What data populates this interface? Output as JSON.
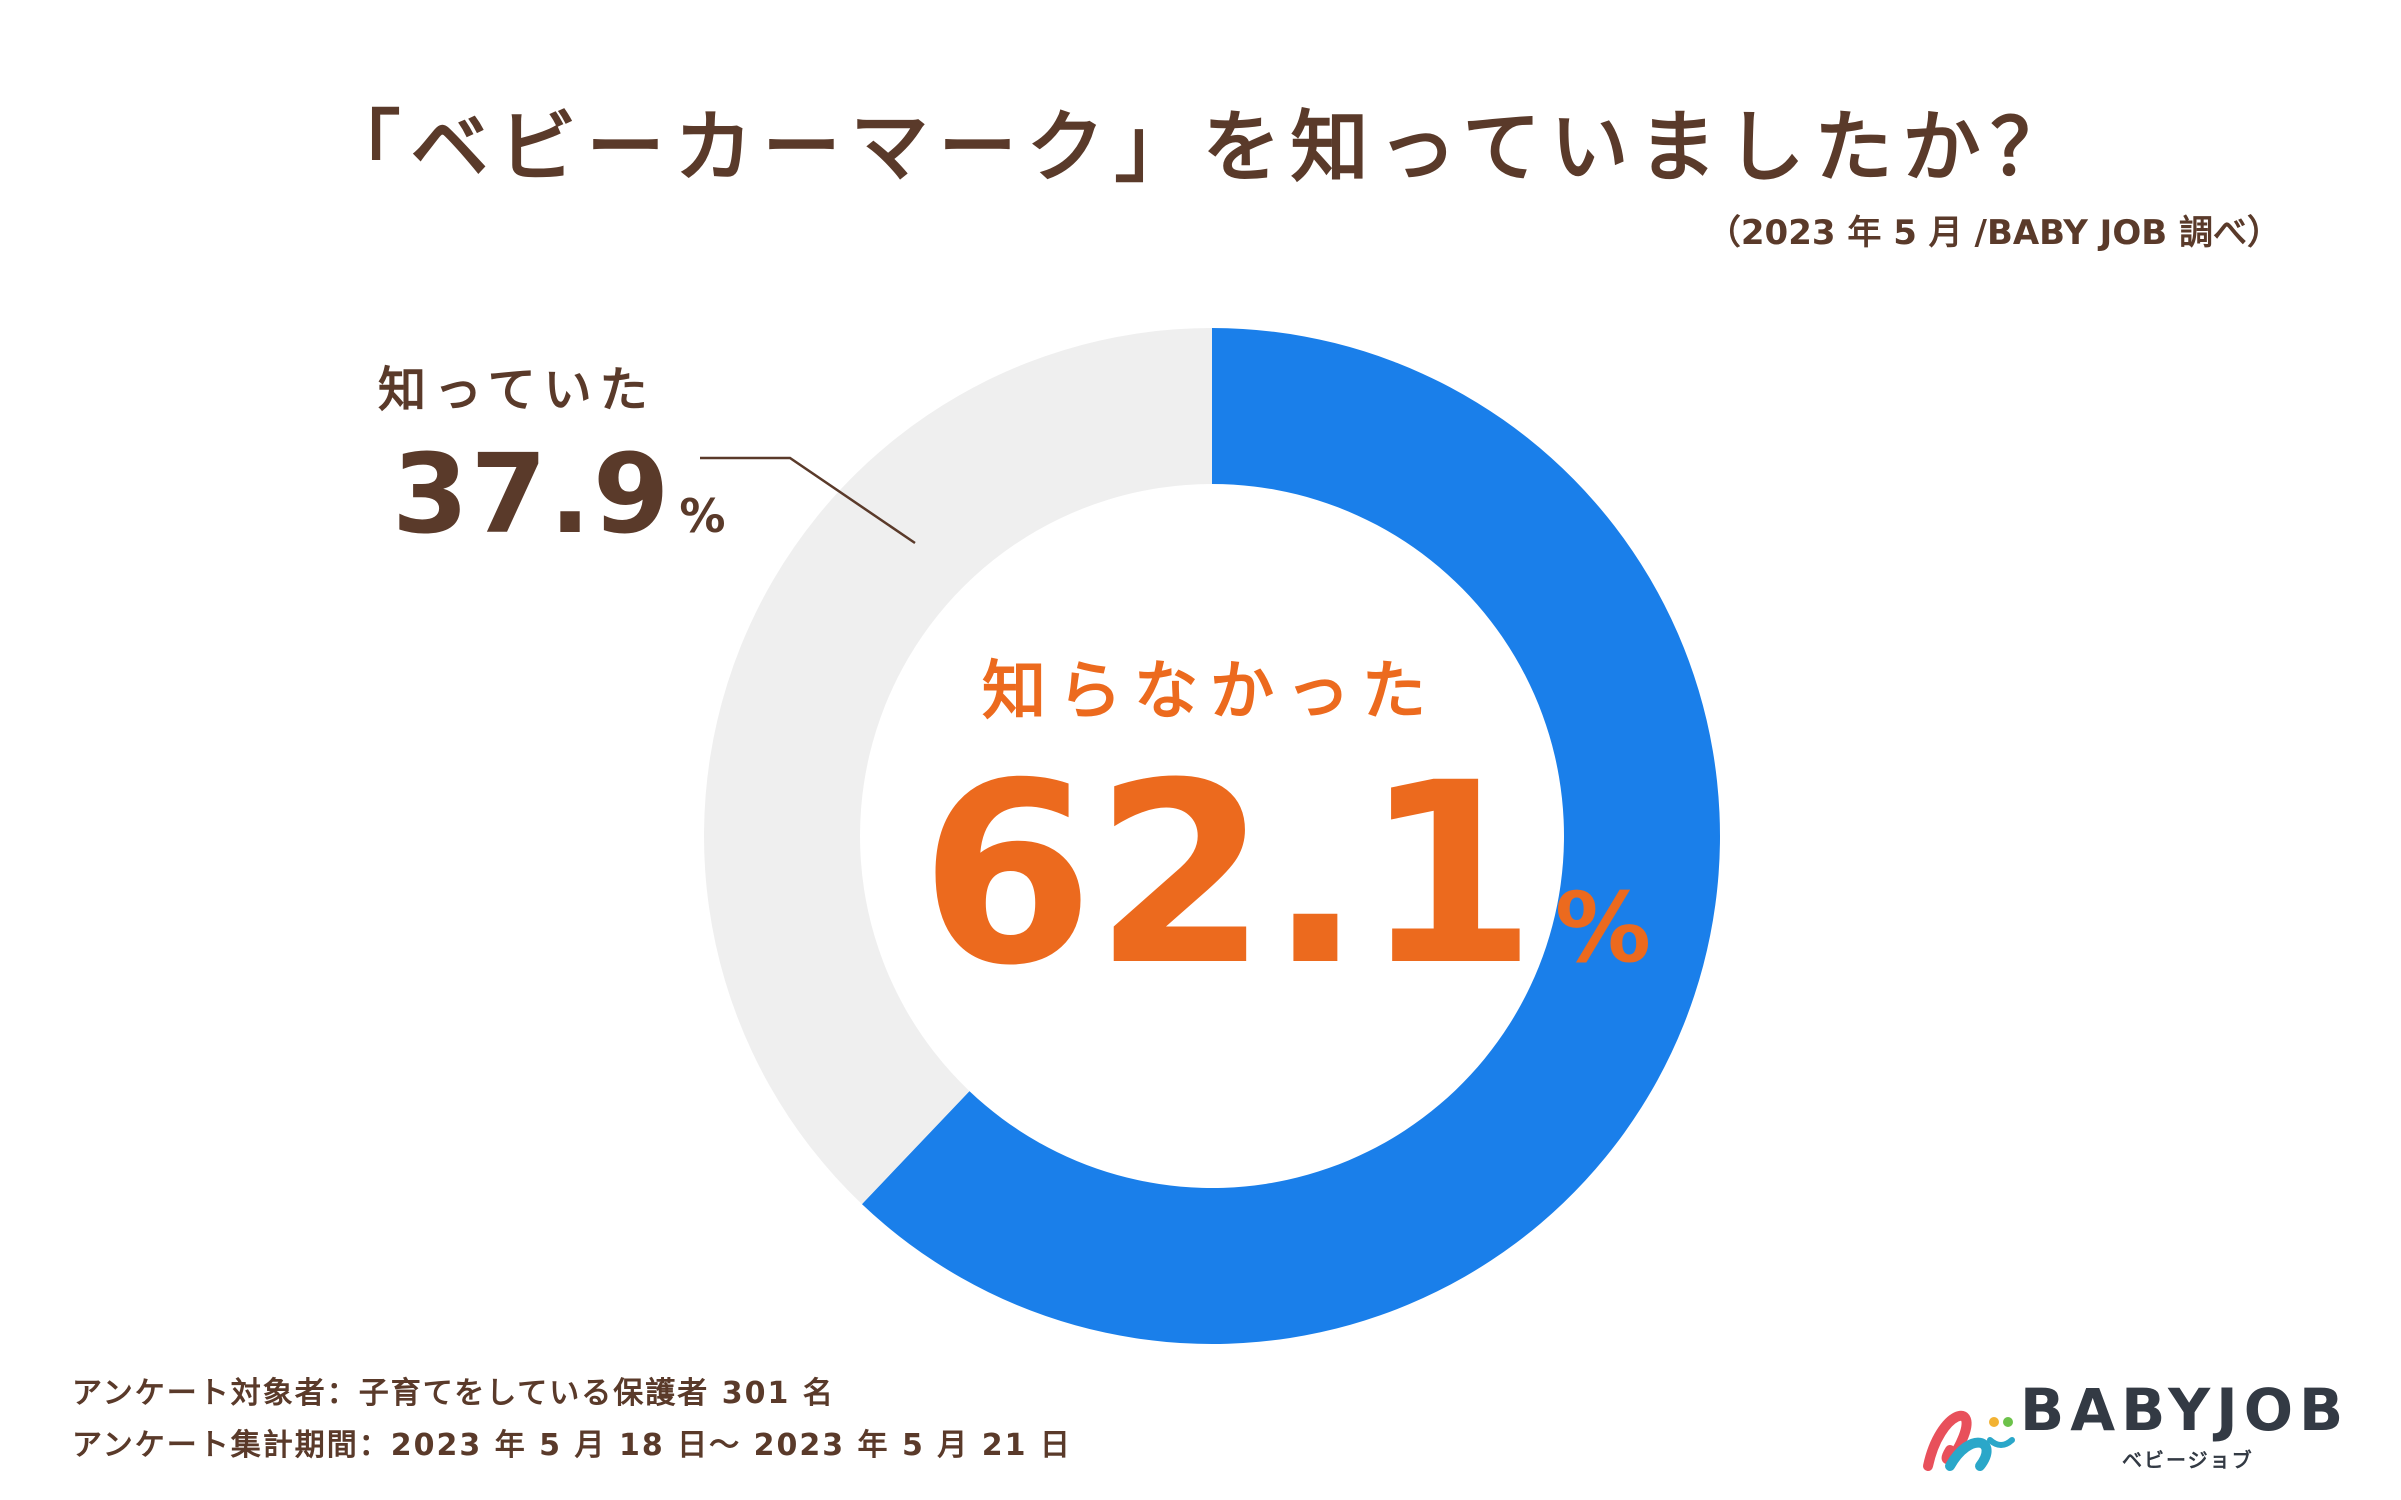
{
  "header": {
    "title": "「ベビーカーマーク」を知っていましたか？",
    "source": "（2023 年 5 月 /BABY JOB 調べ）"
  },
  "chart_data": {
    "type": "pie",
    "title": "「ベビーカーマーク」を知っていましたか？",
    "slices": [
      {
        "label": "知らなかった",
        "value": 62.1,
        "display": "62.1",
        "color": "#1a7fea"
      },
      {
        "label": "知っていた",
        "value": 37.9,
        "display": "37.9",
        "color": "#efefef"
      }
    ],
    "unit": "%"
  },
  "footnotes": {
    "line1": "アンケート対象者：子育てをしている保護者 301 名",
    "line2": "アンケート集計期間：2023 年 5 月 18 日～ 2023 年 5 月 21 日"
  },
  "logo": {
    "name": "BABYJOB",
    "sub": "ベビージョブ"
  }
}
